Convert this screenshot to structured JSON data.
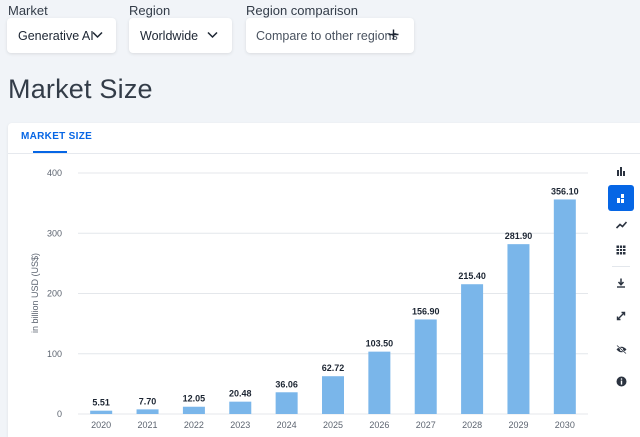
{
  "filters": {
    "market": {
      "label": "Market",
      "value": "Generative AI"
    },
    "region": {
      "label": "Region",
      "value": "Worldwide"
    },
    "comparison": {
      "label": "Region comparison",
      "value": "Compare to other regions"
    }
  },
  "page": {
    "title": "Market Size"
  },
  "panel": {
    "tab_label": "MARKET SIZE"
  },
  "toolbar": {
    "items": [
      "bar-chart-icon",
      "stacked-bar-icon",
      "line-chart-icon",
      "table-icon",
      "download-icon",
      "fullscreen-icon",
      "hide-icon",
      "info-icon"
    ],
    "accent": "#0666e5"
  },
  "chart_data": {
    "type": "bar",
    "categories": [
      "2020",
      "2021",
      "2022",
      "2023",
      "2024",
      "2025",
      "2026",
      "2027",
      "2028",
      "2029",
      "2030"
    ],
    "values": [
      5.51,
      7.7,
      12.05,
      20.48,
      36.06,
      62.72,
      103.5,
      156.9,
      215.4,
      281.9,
      356.1
    ],
    "value_labels": [
      "5.51",
      "7.70",
      "12.05",
      "20.48",
      "36.06",
      "62.72",
      "103.50",
      "156.90",
      "215.40",
      "281.90",
      "356.10"
    ],
    "ylabel": "in billion USD (US$)",
    "ylim": [
      0,
      400
    ],
    "yticks": [
      "0",
      "100",
      "200",
      "300",
      "400"
    ],
    "grid": true,
    "bar_color": "#7ab6ea"
  }
}
